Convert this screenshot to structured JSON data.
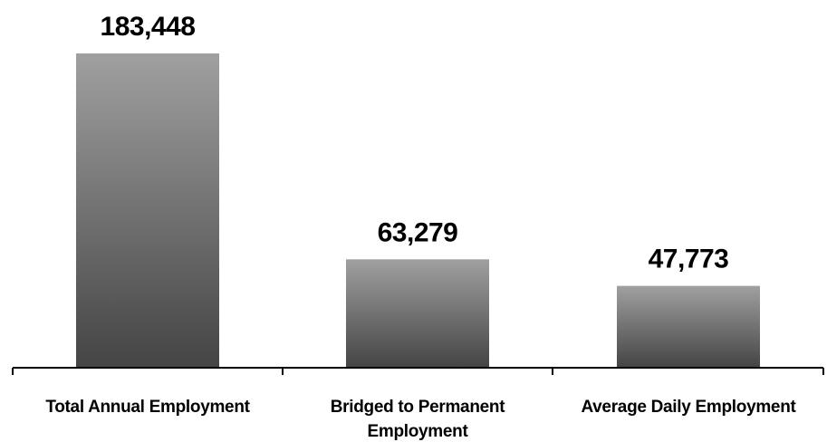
{
  "chart_data": {
    "type": "bar",
    "categories": [
      [
        "Total Annual Employment"
      ],
      [
        "Bridged to Permanent",
        "Employment"
      ],
      [
        "Average Daily Employment"
      ]
    ],
    "values": [
      183448,
      63279,
      47773
    ],
    "data_labels": [
      "183,448",
      "63,279",
      "47,773"
    ],
    "title": "",
    "xlabel": "",
    "ylabel": "",
    "ylim": [
      0,
      183448
    ],
    "grid": false,
    "legend": "none",
    "colors": {
      "bar_top": "#a0a0a0",
      "bar_bottom": "#444444",
      "axis": "#000000",
      "text": "#000000"
    }
  }
}
